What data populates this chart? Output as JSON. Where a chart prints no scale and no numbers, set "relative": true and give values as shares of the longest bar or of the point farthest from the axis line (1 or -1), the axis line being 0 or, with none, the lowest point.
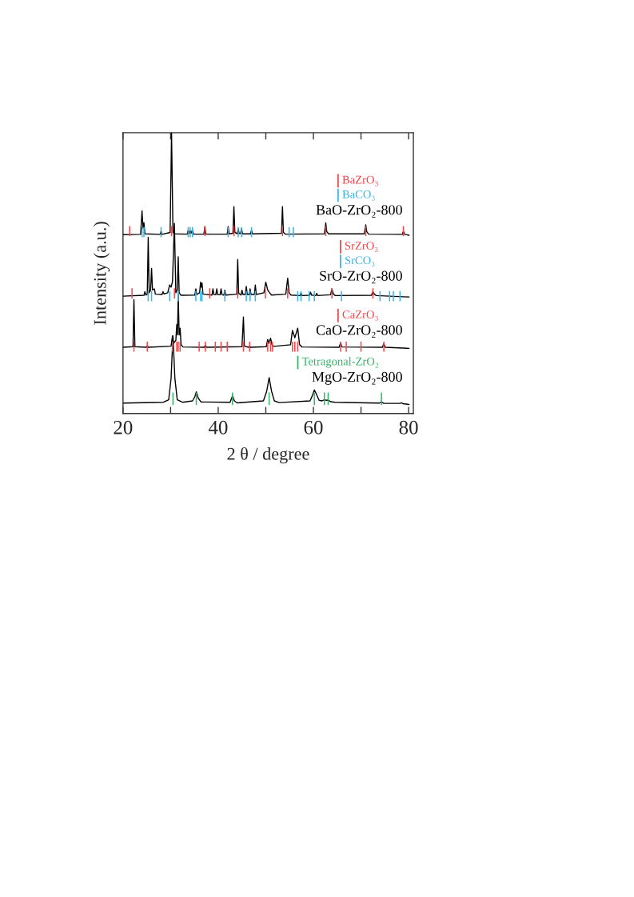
{
  "chart_data": {
    "type": "line",
    "xlabel": "2 θ / degree",
    "ylabel": "Intensity (a.u.)",
    "relative": true,
    "xlim": [
      20,
      81
    ],
    "xticks": [
      20,
      {
        "value": 30,
        "label": null
      },
      40,
      {
        "value": 50,
        "label": null
      },
      60,
      {
        "value": 70,
        "label": null
      },
      80
    ],
    "legend": "right",
    "series": [
      {
        "name": "BaO-ZrO₂-800",
        "color": "#000000",
        "x": [
          20.0,
          23.7,
          24.0,
          24.2,
          24.4,
          24.6,
          27.8,
          28.0,
          28.2,
          29.9,
          30.2,
          30.5,
          30.8,
          33.5,
          33.7,
          33.9,
          34.1,
          34.3,
          34.6,
          34.8,
          37.0,
          37.2,
          37.4,
          41.9,
          42.1,
          42.3,
          43.1,
          43.3,
          43.5,
          44.0,
          44.2,
          44.4,
          44.7,
          44.9,
          45.1,
          46.8,
          47.0,
          47.2,
          53.3,
          53.5,
          53.7,
          54.1,
          62.3,
          62.6,
          62.8,
          63.2,
          70.7,
          71.0,
          71.2,
          71.6,
          78.7,
          78.9,
          79.2,
          80.1
        ],
        "values": [
          0.637,
          0.638,
          0.722,
          0.66,
          0.68,
          0.64,
          0.638,
          0.649,
          0.638,
          0.645,
          1.0,
          0.645,
          0.64,
          0.639,
          0.653,
          0.642,
          0.653,
          0.642,
          0.653,
          0.639,
          0.639,
          0.666,
          0.639,
          0.639,
          0.666,
          0.64,
          0.642,
          0.737,
          0.645,
          0.64,
          0.658,
          0.641,
          0.641,
          0.658,
          0.64,
          0.64,
          0.653,
          0.64,
          0.642,
          0.737,
          0.645,
          0.639,
          0.64,
          0.679,
          0.648,
          0.64,
          0.64,
          0.672,
          0.648,
          0.639,
          0.638,
          0.649,
          0.638,
          0.635
        ]
      },
      {
        "name": "BaZrO₃",
        "color": "#f5474b",
        "x": [
          21.4,
          21.4,
          null,
          30.2,
          30.2,
          null,
          37.2,
          37.2,
          null,
          43.3,
          43.3,
          null,
          53.5,
          53.5,
          null,
          62.6,
          62.6,
          null,
          71.0,
          71.0,
          null,
          78.9,
          78.9
        ],
        "values": [
          0.632,
          0.668,
          null,
          0.632,
          0.668,
          null,
          0.632,
          0.668,
          null,
          0.632,
          0.668,
          null,
          0.632,
          0.668,
          null,
          0.632,
          0.668,
          null,
          0.632,
          0.668,
          null,
          0.632,
          0.668
        ]
      },
      {
        "name": "BaCO₃",
        "color": "#3cb4e6",
        "x": [
          24.0,
          24.0,
          null,
          24.4,
          24.4,
          null,
          28.0,
          28.0,
          null,
          33.7,
          33.7,
          null,
          34.1,
          34.1,
          null,
          34.6,
          34.6,
          null,
          42.1,
          42.1,
          null,
          44.2,
          44.2,
          null,
          44.9,
          44.9,
          null,
          47.0,
          47.0,
          null,
          54.9,
          54.9,
          null,
          55.8,
          55.8
        ],
        "values": [
          0.628,
          0.664,
          null,
          0.628,
          0.664,
          null,
          0.628,
          0.664,
          null,
          0.628,
          0.664,
          null,
          0.628,
          0.664,
          null,
          0.628,
          0.664,
          null,
          0.628,
          0.664,
          null,
          0.628,
          0.664,
          null,
          0.628,
          0.664,
          null,
          0.628,
          0.664,
          null,
          0.628,
          0.664,
          null,
          0.628,
          0.664
        ]
      },
      {
        "name": "SrO-ZrO₂-800",
        "color": "#000000",
        "x": [
          20.0,
          24.4,
          24.6,
          24.8,
          25.1,
          25.3,
          25.5,
          25.8,
          26.0,
          26.2,
          26.6,
          26.8,
          28.2,
          28.4,
          28.6,
          29.4,
          29.8,
          30.1,
          30.4,
          30.8,
          31.1,
          31.4,
          31.6,
          31.8,
          32.2,
          35.1,
          35.3,
          35.5,
          36.1,
          36.3,
          36.45,
          36.6,
          36.8,
          38.7,
          38.9,
          39.1,
          39.5,
          39.7,
          39.9,
          40.4,
          40.6,
          40.8,
          41.2,
          41.4,
          41.6,
          43.9,
          44.1,
          44.3,
          44.8,
          45.0,
          45.2,
          45.7,
          45.9,
          46.1,
          46.5,
          46.7,
          46.9,
          47.6,
          47.8,
          48.0,
          49.6,
          50.0,
          50.4,
          50.8,
          51.2,
          54.2,
          54.6,
          54.9,
          55.3,
          57.2,
          57.4,
          57.6,
          59.2,
          59.4,
          59.6,
          60.5,
          60.7,
          60.9,
          63.6,
          63.9,
          64.2,
          64.6,
          72.2,
          72.5,
          72.8,
          73.2,
          80.1
        ],
        "values": [
          0.418,
          0.421,
          0.434,
          0.422,
          0.425,
          0.628,
          0.43,
          0.44,
          0.517,
          0.44,
          0.444,
          0.425,
          0.424,
          0.434,
          0.426,
          0.43,
          0.458,
          0.45,
          0.47,
          0.677,
          0.43,
          0.44,
          0.558,
          0.43,
          0.421,
          0.422,
          0.444,
          0.424,
          0.43,
          0.468,
          0.45,
          0.465,
          0.425,
          0.422,
          0.444,
          0.423,
          0.423,
          0.444,
          0.423,
          0.423,
          0.444,
          0.423,
          0.422,
          0.439,
          0.422,
          0.425,
          0.549,
          0.428,
          0.422,
          0.439,
          0.424,
          0.424,
          0.453,
          0.424,
          0.423,
          0.444,
          0.424,
          0.424,
          0.458,
          0.424,
          0.43,
          0.468,
          0.44,
          0.43,
          0.422,
          0.425,
          0.482,
          0.43,
          0.422,
          0.42,
          0.43,
          0.42,
          0.421,
          0.432,
          0.422,
          0.42,
          0.428,
          0.42,
          0.423,
          0.444,
          0.425,
          0.42,
          0.421,
          0.434,
          0.425,
          0.42,
          0.415
        ]
      },
      {
        "name": "SrZrO₃",
        "color": "#f5474b",
        "x": [
          21.9,
          21.9,
          null,
          30.8,
          30.8,
          null,
          38.2,
          38.2,
          null,
          44.1,
          44.1,
          null,
          49.9,
          49.9,
          null,
          54.6,
          54.6,
          null,
          63.9,
          63.9,
          null,
          72.5,
          72.5
        ],
        "values": [
          0.41,
          0.446,
          null,
          0.41,
          0.446,
          null,
          0.41,
          0.446,
          null,
          0.41,
          0.446,
          null,
          0.41,
          0.446,
          null,
          0.41,
          0.446,
          null,
          0.41,
          0.446,
          null,
          0.41,
          0.446
        ]
      },
      {
        "name": "SrCO₃",
        "color": "#3cb4e6",
        "x": [
          25.3,
          25.3,
          null,
          26.0,
          26.0,
          null,
          29.8,
          29.8,
          null,
          31.6,
          31.6,
          null,
          35.3,
          35.3,
          null,
          36.3,
          36.3,
          null,
          36.6,
          36.6,
          null,
          41.4,
          41.4,
          null,
          45.9,
          45.9,
          null,
          46.7,
          46.7,
          null,
          47.8,
          47.8,
          null,
          56.7,
          56.7,
          null,
          57.4,
          57.4,
          null,
          59.1,
          59.1,
          null,
          60.2,
          60.2,
          null,
          65.9,
          65.9,
          null,
          74.0,
          74.0,
          null,
          76.0,
          76.0,
          null,
          76.8,
          76.8,
          null,
          78.2,
          78.2
        ],
        "values": [
          0.4,
          0.436,
          null,
          0.4,
          0.436,
          null,
          0.4,
          0.436,
          null,
          0.4,
          0.436,
          null,
          0.4,
          0.436,
          null,
          0.4,
          0.436,
          null,
          0.4,
          0.436,
          null,
          0.4,
          0.436,
          null,
          0.4,
          0.436,
          null,
          0.4,
          0.436,
          null,
          0.4,
          0.436,
          null,
          0.4,
          0.436,
          null,
          0.4,
          0.436,
          null,
          0.4,
          0.436,
          null,
          0.4,
          0.436,
          null,
          0.4,
          0.436,
          null,
          0.4,
          0.436,
          null,
          0.4,
          0.436,
          null,
          0.4,
          0.436,
          null,
          0.4,
          0.436
        ]
      },
      {
        "name": "CaO-ZrO₂-800",
        "color": "#000000",
        "x": [
          20.0,
          22.1,
          22.3,
          22.5,
          24.9,
          25.1,
          25.3,
          30.1,
          30.4,
          30.6,
          31.1,
          31.3,
          31.45,
          31.6,
          31.8,
          32.0,
          32.2,
          32.6,
          37.1,
          37.3,
          37.5,
          45.0,
          45.3,
          45.5,
          46.4,
          46.6,
          46.8,
          50.1,
          50.4,
          50.6,
          51.0,
          51.3,
          51.6,
          55.2,
          55.6,
          56.1,
          56.7,
          57.1,
          57.6,
          65.4,
          65.7,
          66.0,
          74.5,
          74.8,
          75.1,
          80.1
        ],
        "values": [
          0.236,
          0.238,
          0.406,
          0.238,
          0.236,
          0.241,
          0.236,
          0.24,
          0.277,
          0.25,
          0.26,
          0.317,
          0.28,
          0.426,
          0.28,
          0.304,
          0.245,
          0.237,
          0.236,
          0.244,
          0.236,
          0.238,
          0.344,
          0.24,
          0.236,
          0.24,
          0.236,
          0.238,
          0.264,
          0.25,
          0.268,
          0.245,
          0.239,
          0.245,
          0.296,
          0.27,
          0.304,
          0.245,
          0.237,
          0.236,
          0.251,
          0.237,
          0.236,
          0.249,
          0.236,
          0.232
        ]
      },
      {
        "name": "CaZrO₃",
        "color": "#f5474b",
        "x": [
          22.3,
          22.3,
          null,
          25.1,
          25.1,
          null,
          30.4,
          30.4,
          null,
          31.3,
          31.3,
          null,
          31.6,
          31.6,
          null,
          32.0,
          32.0,
          null,
          36.0,
          36.0,
          null,
          37.3,
          37.3,
          null,
          39.4,
          39.4,
          null,
          40.6,
          40.6,
          null,
          41.9,
          41.9,
          null,
          45.3,
          45.3,
          null,
          46.6,
          46.6,
          null,
          50.4,
          50.4,
          null,
          51.0,
          51.0,
          null,
          51.4,
          51.4,
          null,
          55.6,
          55.6,
          null,
          56.1,
          56.1,
          null,
          56.7,
          56.7,
          null,
          65.7,
          65.7,
          null,
          66.9,
          66.9,
          null,
          70.0,
          70.0,
          null,
          74.8,
          74.8
        ],
        "values": [
          0.22,
          0.256,
          null,
          0.22,
          0.256,
          null,
          0.22,
          0.256,
          null,
          0.22,
          0.256,
          null,
          0.22,
          0.256,
          null,
          0.22,
          0.256,
          null,
          0.22,
          0.256,
          null,
          0.22,
          0.256,
          null,
          0.22,
          0.256,
          null,
          0.22,
          0.256,
          null,
          0.22,
          0.256,
          null,
          0.22,
          0.256,
          null,
          0.22,
          0.256,
          null,
          0.22,
          0.256,
          null,
          0.22,
          0.256,
          null,
          0.22,
          0.256,
          null,
          0.22,
          0.256,
          null,
          0.22,
          0.256,
          null,
          0.22,
          0.256,
          null,
          0.22,
          0.256,
          null,
          0.22,
          0.256,
          null,
          0.22,
          0.256,
          null,
          0.22,
          0.256
        ]
      },
      {
        "name": "MgO-ZrO₂-800",
        "color": "#000000",
        "x": [
          20.0,
          28.5,
          29.6,
          30.1,
          30.5,
          30.9,
          31.4,
          32.5,
          34.6,
          35.1,
          35.4,
          35.8,
          36.4,
          42.5,
          43.0,
          43.4,
          44.0,
          49.5,
          50.2,
          50.7,
          51.2,
          51.8,
          52.8,
          59.3,
          59.8,
          60.2,
          60.6,
          61.2,
          61.8,
          62.3,
          62.7,
          63.1,
          63.6,
          64.5,
          73.8,
          74.3,
          74.8,
          78.2,
          78.5,
          78.8,
          80.1
        ],
        "values": [
          0.037,
          0.04,
          0.049,
          0.125,
          0.277,
          0.125,
          0.049,
          0.04,
          0.045,
          0.06,
          0.077,
          0.055,
          0.041,
          0.04,
          0.063,
          0.045,
          0.038,
          0.045,
          0.08,
          0.128,
          0.08,
          0.045,
          0.039,
          0.045,
          0.065,
          0.084,
          0.07,
          0.047,
          0.045,
          0.049,
          0.047,
          0.048,
          0.042,
          0.04,
          0.037,
          0.041,
          0.036,
          0.036,
          0.038,
          0.035,
          0.032
        ]
      },
      {
        "name": "Tetragonal-ZrO₂",
        "color": "#35b56a",
        "x": [
          30.5,
          30.5,
          null,
          35.4,
          35.4,
          null,
          43.0,
          43.0,
          null,
          50.7,
          50.7,
          null,
          60.2,
          60.2,
          null,
          62.3,
          62.3,
          null,
          63.1,
          63.1,
          null,
          74.3,
          74.3
        ],
        "values": [
          0.03,
          0.075,
          null,
          0.03,
          0.075,
          null,
          0.03,
          0.075,
          null,
          0.03,
          0.075,
          null,
          0.03,
          0.075,
          null,
          0.03,
          0.075,
          null,
          0.03,
          0.075,
          null,
          0.03,
          0.075
        ]
      }
    ]
  }
}
